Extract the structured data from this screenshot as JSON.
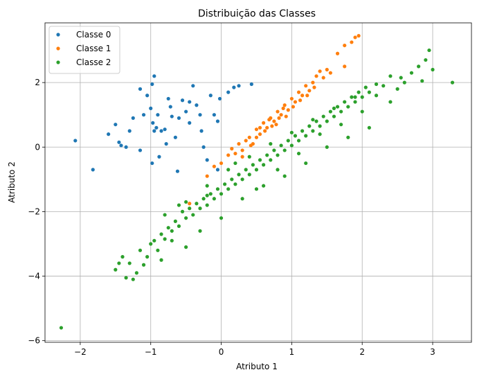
{
  "chart_data": {
    "type": "scatter",
    "title": "Distribuição das Classes",
    "xlabel": "Atributo 1",
    "ylabel": "Atributo 2",
    "xlim": [
      -2.5,
      3.55
    ],
    "ylim": [
      -6.05,
      3.85
    ],
    "xticks": [
      -2,
      -1,
      0,
      1,
      2,
      3
    ],
    "yticks": [
      -6,
      -4,
      -2,
      0,
      2
    ],
    "grid": true,
    "legend_position": "top-left",
    "series": [
      {
        "name": "Classe 0",
        "color": "#1f77b4",
        "points": [
          [
            -2.07,
            0.2
          ],
          [
            -1.82,
            -0.7
          ],
          [
            -1.6,
            0.4
          ],
          [
            -1.5,
            0.7
          ],
          [
            -1.45,
            0.15
          ],
          [
            -1.42,
            0.05
          ],
          [
            -1.35,
            0.0
          ],
          [
            -1.25,
            0.9
          ],
          [
            -1.3,
            0.5
          ],
          [
            -1.15,
            1.8
          ],
          [
            -1.15,
            -0.1
          ],
          [
            -1.05,
            1.6
          ],
          [
            -1.0,
            1.2
          ],
          [
            -0.98,
            1.95
          ],
          [
            -0.95,
            2.2
          ],
          [
            -0.97,
            0.75
          ],
          [
            -0.9,
            1.0
          ],
          [
            -0.85,
            0.5
          ],
          [
            -0.8,
            0.55
          ],
          [
            -0.75,
            1.5
          ],
          [
            -0.7,
            0.95
          ],
          [
            -0.65,
            0.3
          ],
          [
            -0.6,
            0.9
          ],
          [
            -0.55,
            1.45
          ],
          [
            -0.5,
            1.1
          ],
          [
            -0.45,
            0.75
          ],
          [
            -0.4,
            1.9
          ],
          [
            -0.35,
            1.3
          ],
          [
            -0.3,
            1.0
          ],
          [
            -0.28,
            0.5
          ],
          [
            -0.25,
            0.0
          ],
          [
            -0.2,
            -0.4
          ],
          [
            -0.15,
            1.6
          ],
          [
            -0.1,
            1.0
          ],
          [
            -0.05,
            -0.7
          ],
          [
            -0.95,
            0.5
          ],
          [
            -1.1,
            1.0
          ],
          [
            -0.62,
            -0.75
          ],
          [
            -0.78,
            0.1
          ],
          [
            -0.88,
            -0.3
          ],
          [
            -0.02,
            1.5
          ],
          [
            0.1,
            1.7
          ],
          [
            0.18,
            1.85
          ],
          [
            0.25,
            1.9
          ],
          [
            0.43,
            1.95
          ],
          [
            -0.92,
            0.6
          ],
          [
            -0.98,
            -0.5
          ],
          [
            -0.45,
            1.4
          ],
          [
            -0.05,
            0.8
          ],
          [
            -0.72,
            1.25
          ]
        ]
      },
      {
        "name": "Classe 1",
        "color": "#ff7f0e",
        "points": [
          [
            -0.45,
            -1.75
          ],
          [
            -0.2,
            -0.9
          ],
          [
            -0.1,
            -0.6
          ],
          [
            0.0,
            -0.5
          ],
          [
            0.1,
            -0.25
          ],
          [
            0.15,
            -0.05
          ],
          [
            0.2,
            -0.2
          ],
          [
            0.25,
            0.1
          ],
          [
            0.3,
            -0.1
          ],
          [
            0.35,
            0.2
          ],
          [
            0.4,
            0.3
          ],
          [
            0.45,
            0.1
          ],
          [
            0.5,
            0.55
          ],
          [
            0.55,
            0.4
          ],
          [
            0.6,
            0.75
          ],
          [
            0.65,
            0.6
          ],
          [
            0.7,
            0.9
          ],
          [
            0.75,
            0.8
          ],
          [
            0.8,
            1.1
          ],
          [
            0.85,
            1.0
          ],
          [
            0.9,
            1.3
          ],
          [
            0.95,
            1.15
          ],
          [
            1.0,
            1.5
          ],
          [
            1.05,
            1.4
          ],
          [
            1.1,
            1.7
          ],
          [
            1.15,
            1.6
          ],
          [
            1.2,
            1.9
          ],
          [
            1.25,
            1.75
          ],
          [
            1.3,
            2.0
          ],
          [
            1.35,
            2.2
          ],
          [
            1.4,
            2.35
          ],
          [
            1.45,
            2.15
          ],
          [
            1.5,
            2.4
          ],
          [
            1.55,
            2.3
          ],
          [
            1.65,
            2.9
          ],
          [
            1.75,
            2.5
          ],
          [
            1.75,
            3.15
          ],
          [
            1.85,
            3.25
          ],
          [
            1.9,
            3.4
          ],
          [
            1.95,
            3.45
          ],
          [
            0.3,
            -0.3
          ],
          [
            0.5,
            0.3
          ],
          [
            0.62,
            0.5
          ],
          [
            0.72,
            0.65
          ],
          [
            0.82,
            0.9
          ],
          [
            0.92,
            0.95
          ],
          [
            1.02,
            1.25
          ],
          [
            1.12,
            1.45
          ],
          [
            1.22,
            1.6
          ],
          [
            1.32,
            1.85
          ],
          [
            0.42,
            0.05
          ],
          [
            0.55,
            0.6
          ],
          [
            0.68,
            0.85
          ],
          [
            0.78,
            0.7
          ],
          [
            0.88,
            1.2
          ]
        ]
      },
      {
        "name": "Classe 2",
        "color": "#2ca02c",
        "points": [
          [
            -2.27,
            -5.6
          ],
          [
            -1.5,
            -3.8
          ],
          [
            -1.45,
            -3.6
          ],
          [
            -1.35,
            -4.05
          ],
          [
            -1.3,
            -3.6
          ],
          [
            -1.25,
            -4.1
          ],
          [
            -1.2,
            -3.9
          ],
          [
            -1.1,
            -3.65
          ],
          [
            -1.05,
            -3.4
          ],
          [
            -1.0,
            -3.0
          ],
          [
            -0.95,
            -2.9
          ],
          [
            -0.9,
            -3.2
          ],
          [
            -0.85,
            -2.7
          ],
          [
            -0.8,
            -2.85
          ],
          [
            -0.75,
            -2.5
          ],
          [
            -0.7,
            -2.6
          ],
          [
            -0.65,
            -2.3
          ],
          [
            -0.6,
            -2.45
          ],
          [
            -0.55,
            -2.0
          ],
          [
            -0.5,
            -2.2
          ],
          [
            -0.45,
            -1.9
          ],
          [
            -0.4,
            -2.1
          ],
          [
            -0.35,
            -1.75
          ],
          [
            -0.3,
            -1.9
          ],
          [
            -0.25,
            -1.6
          ],
          [
            -0.2,
            -1.8
          ],
          [
            -0.15,
            -1.45
          ],
          [
            -0.1,
            -1.6
          ],
          [
            -0.05,
            -1.3
          ],
          [
            0.0,
            -1.45
          ],
          [
            0.05,
            -1.15
          ],
          [
            0.1,
            -1.3
          ],
          [
            0.15,
            -1.0
          ],
          [
            0.2,
            -1.15
          ],
          [
            0.25,
            -0.85
          ],
          [
            0.3,
            -1.0
          ],
          [
            0.35,
            -0.7
          ],
          [
            0.4,
            -0.85
          ],
          [
            0.45,
            -0.55
          ],
          [
            0.5,
            -0.7
          ],
          [
            0.55,
            -0.4
          ],
          [
            0.6,
            -0.55
          ],
          [
            0.65,
            -0.25
          ],
          [
            0.7,
            -0.4
          ],
          [
            0.75,
            -0.1
          ],
          [
            0.8,
            -0.25
          ],
          [
            0.85,
            0.05
          ],
          [
            0.9,
            -0.1
          ],
          [
            0.95,
            0.2
          ],
          [
            1.0,
            0.05
          ],
          [
            1.05,
            0.35
          ],
          [
            1.1,
            0.2
          ],
          [
            1.15,
            0.5
          ],
          [
            1.2,
            0.35
          ],
          [
            1.25,
            0.65
          ],
          [
            1.3,
            0.5
          ],
          [
            1.35,
            0.8
          ],
          [
            1.4,
            0.65
          ],
          [
            1.45,
            0.95
          ],
          [
            1.5,
            0.8
          ],
          [
            1.55,
            1.1
          ],
          [
            1.6,
            0.95
          ],
          [
            1.65,
            1.25
          ],
          [
            1.7,
            1.1
          ],
          [
            1.75,
            1.4
          ],
          [
            1.8,
            1.25
          ],
          [
            1.85,
            1.55
          ],
          [
            1.9,
            1.4
          ],
          [
            1.95,
            1.7
          ],
          [
            2.0,
            1.55
          ],
          [
            2.05,
            1.85
          ],
          [
            2.1,
            1.7
          ],
          [
            2.2,
            1.6
          ],
          [
            2.3,
            1.9
          ],
          [
            2.4,
            2.2
          ],
          [
            2.5,
            1.8
          ],
          [
            2.6,
            2.0
          ],
          [
            2.7,
            2.3
          ],
          [
            2.8,
            2.5
          ],
          [
            2.9,
            2.7
          ],
          [
            2.95,
            3.0
          ],
          [
            3.0,
            2.4
          ],
          [
            3.28,
            2.0
          ],
          [
            2.85,
            2.05
          ],
          [
            2.55,
            2.15
          ],
          [
            -0.5,
            -1.7
          ],
          [
            -0.2,
            -1.2
          ],
          [
            0.1,
            -0.7
          ],
          [
            0.4,
            -0.3
          ],
          [
            0.7,
            0.1
          ],
          [
            1.0,
            0.45
          ],
          [
            1.3,
            0.85
          ],
          [
            1.6,
            1.2
          ],
          [
            1.9,
            1.55
          ],
          [
            2.2,
            1.95
          ],
          [
            -0.3,
            -2.6
          ],
          [
            0.0,
            -2.2
          ],
          [
            0.3,
            -1.6
          ],
          [
            0.6,
            -1.2
          ],
          [
            0.9,
            -0.9
          ],
          [
            1.2,
            -0.5
          ],
          [
            1.5,
            0.0
          ],
          [
            1.8,
            0.3
          ],
          [
            2.1,
            0.6
          ],
          [
            2.4,
            1.4
          ],
          [
            -0.8,
            -2.1
          ],
          [
            -0.6,
            -1.8
          ],
          [
            -0.2,
            -1.5
          ],
          [
            0.2,
            -0.5
          ],
          [
            0.5,
            -1.3
          ],
          [
            0.8,
            -0.7
          ],
          [
            1.1,
            -0.2
          ],
          [
            1.4,
            0.4
          ],
          [
            1.7,
            0.7
          ],
          [
            2.0,
            1.1
          ],
          [
            -1.4,
            -3.4
          ],
          [
            -1.15,
            -3.2
          ],
          [
            -0.85,
            -3.5
          ],
          [
            -0.7,
            -2.9
          ],
          [
            -0.5,
            -3.1
          ]
        ]
      }
    ]
  }
}
